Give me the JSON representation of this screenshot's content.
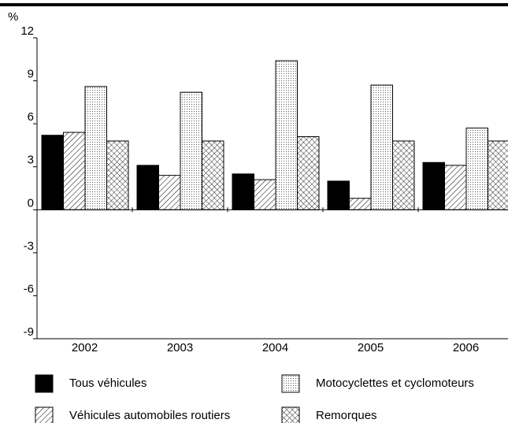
{
  "chart_data": {
    "type": "bar",
    "y_unit": "%",
    "categories": [
      "2002",
      "2003",
      "2004",
      "2005",
      "2006"
    ],
    "series": [
      {
        "name": "Tous véhicules",
        "color": "#000000",
        "pattern": "solid",
        "values": [
          5.2,
          3.1,
          2.5,
          2.0,
          3.3
        ]
      },
      {
        "name": "Véhicules automobiles routiers",
        "color": "#000000",
        "pattern": "diagonal",
        "values": [
          5.4,
          2.4,
          2.1,
          0.8,
          3.1
        ]
      },
      {
        "name": "Motocyclettes et cyclomoteurs",
        "color": "#000000",
        "pattern": "dots",
        "values": [
          8.6,
          8.2,
          10.4,
          8.7,
          5.7
        ]
      },
      {
        "name": "Remorques",
        "color": "#000000",
        "pattern": "crosshatch",
        "values": [
          4.8,
          4.8,
          5.1,
          4.8,
          4.8
        ]
      }
    ],
    "ylim": [
      -9,
      12
    ],
    "yticks": [
      -9,
      -6,
      -3,
      0,
      3,
      6,
      9,
      12
    ],
    "grid": false
  }
}
